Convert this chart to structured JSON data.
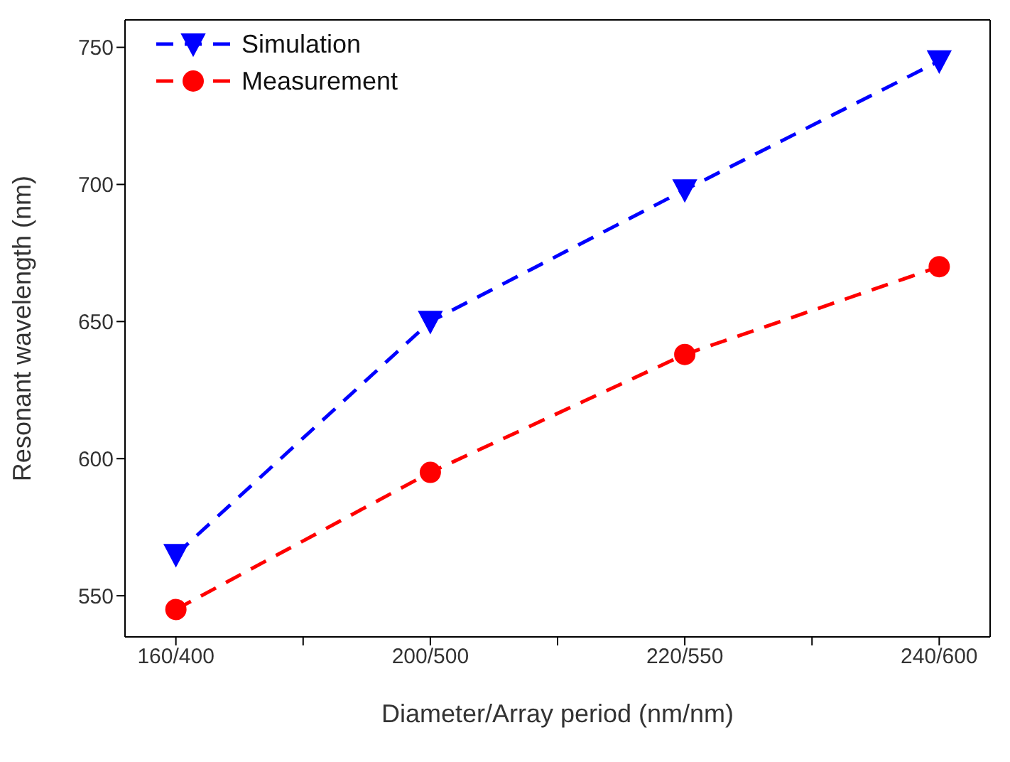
{
  "chart_data": {
    "type": "line",
    "xlabel": "Diameter/Array period (nm/nm)",
    "ylabel": "Resonant wavelength (nm)",
    "categories": [
      "160/400",
      "200/500",
      "220/550",
      "240/600"
    ],
    "series": [
      {
        "name": "Simulation",
        "color": "#0000ff",
        "values": [
          565,
          650,
          698,
          745
        ],
        "marker": "triangle"
      },
      {
        "name": "Measurement",
        "color": "#ff0000",
        "values": [
          545,
          595,
          638,
          670
        ],
        "marker": "circle"
      }
    ],
    "ylim": [
      535,
      760
    ],
    "yticks": [
      550,
      600,
      650,
      700,
      750
    ],
    "line_style": "dashed",
    "legend": "top left"
  }
}
